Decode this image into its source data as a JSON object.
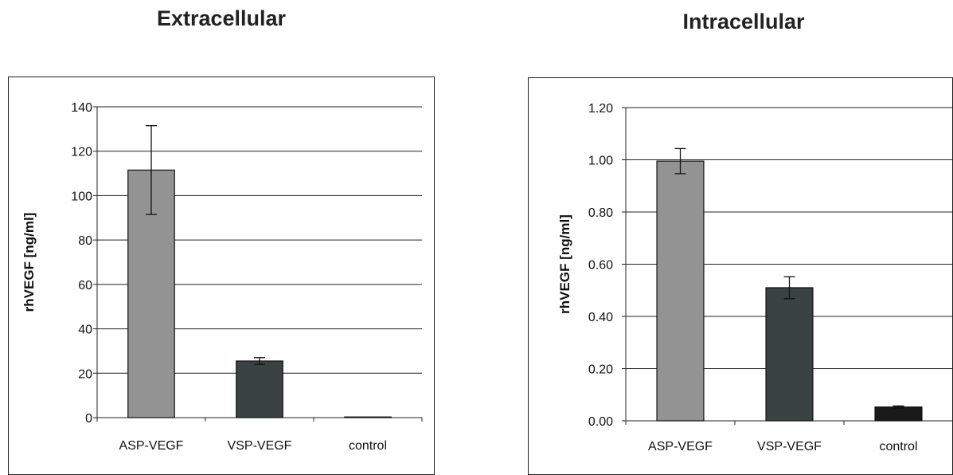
{
  "chart_data": [
    {
      "type": "bar",
      "title": "Extracellular",
      "ylabel": "rhVEGF [ng/ml]",
      "xlabel": "",
      "categories": [
        "ASP-VEGF",
        "VSP-VEGF",
        "control"
      ],
      "values": [
        111.5,
        25.5,
        0.3
      ],
      "error": [
        20.0,
        1.5,
        0
      ],
      "colors": [
        "#939393",
        "#3a4342",
        "#1a1a1a"
      ],
      "ylim": [
        0,
        140
      ],
      "yticks": [
        0,
        20,
        40,
        60,
        80,
        100,
        120,
        140
      ],
      "ytick_labels": [
        "0",
        "20",
        "40",
        "60",
        "80",
        "100",
        "120",
        "140"
      ],
      "grid": true,
      "legend": "none"
    },
    {
      "type": "bar",
      "title": "Intracellular",
      "ylabel": "rhVEGF [ng/ml]",
      "xlabel": "",
      "categories": [
        "ASP-VEGF",
        "VSP-VEGF",
        "control"
      ],
      "values": [
        0.995,
        0.51,
        0.053
      ],
      "error": [
        0.048,
        0.042,
        0.004
      ],
      "colors": [
        "#939393",
        "#3a4342",
        "#1a1a1a"
      ],
      "ylim": [
        0,
        1.2
      ],
      "yticks": [
        0,
        0.2,
        0.4,
        0.6,
        0.8,
        1.0,
        1.2
      ],
      "ytick_labels": [
        "0.00",
        "0.20",
        "0.40",
        "0.60",
        "0.80",
        "1.00",
        "1.20"
      ],
      "grid": true,
      "legend": "none"
    }
  ]
}
